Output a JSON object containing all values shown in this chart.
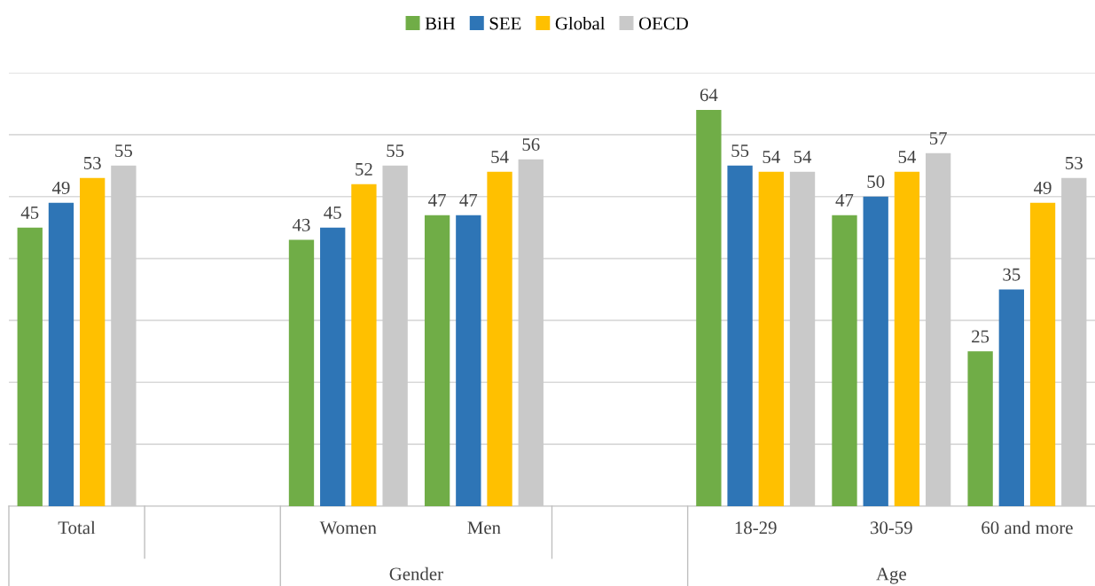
{
  "chart_data": {
    "type": "bar",
    "categories": [
      "Total",
      null,
      "Women",
      "Men",
      null,
      "18-29",
      "30-59",
      "60 and more"
    ],
    "series": [
      {
        "name": "BiH",
        "color": "#70ad47",
        "values": [
          45,
          null,
          43,
          47,
          null,
          64,
          47,
          25
        ]
      },
      {
        "name": "SEE",
        "color": "#2e75b6",
        "values": [
          49,
          null,
          45,
          47,
          null,
          55,
          50,
          35
        ]
      },
      {
        "name": "Global",
        "color": "#ffc000",
        "values": [
          53,
          null,
          52,
          54,
          null,
          54,
          54,
          49
        ]
      },
      {
        "name": "OECD",
        "color": "#c9c9c9",
        "values": [
          55,
          null,
          55,
          56,
          null,
          54,
          57,
          53
        ]
      }
    ],
    "annotations": [
      "Gender",
      "Age"
    ],
    "ylim": [
      0,
      70
    ],
    "yticks": [
      {
        "value": 0,
        "label": null
      },
      {
        "value": 10,
        "label": null
      },
      {
        "value": 20,
        "label": null
      },
      {
        "value": 30,
        "label": null
      },
      {
        "value": 40,
        "label": null
      },
      {
        "value": 50,
        "label": null
      },
      {
        "value": 60,
        "label": null
      },
      {
        "value": 70,
        "label": null
      }
    ],
    "grid": "y",
    "legend": "top",
    "data_labels": true,
    "tick_labels": "x"
  }
}
